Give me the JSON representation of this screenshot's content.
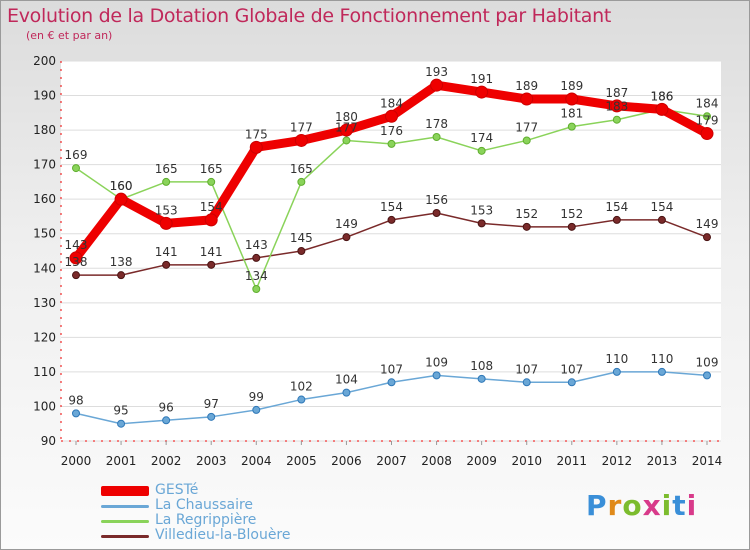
{
  "title": "Evolution de la Dotation Globale de Fonctionnement par Habitant",
  "subtitle": "(en € et par an)",
  "logo": {
    "text": "Proxiti",
    "colors": [
      "#3a8fd8",
      "#e08a1a",
      "#7cbc2e",
      "#d83a8a"
    ]
  },
  "chart_data": {
    "type": "line",
    "title": "Evolution de la Dotation Globale de Fonctionnement par Habitant",
    "subtitle": "(en € et par an)",
    "xlabel": "",
    "ylabel": "",
    "x": [
      "2000",
      "2001",
      "2002",
      "2003",
      "2004",
      "2005",
      "2006",
      "2007",
      "2008",
      "2009",
      "2010",
      "2011",
      "2012",
      "2013",
      "2014"
    ],
    "yticks": [
      90,
      100,
      110,
      120,
      130,
      140,
      150,
      160,
      170,
      180,
      190,
      200
    ],
    "ylim": [
      90,
      200
    ],
    "grid": "horizontal",
    "legend_position": "bottom-left",
    "series": [
      {
        "name": "GESTé",
        "color": "#ee0000",
        "values": [
          143,
          160,
          153,
          154,
          175,
          177,
          180,
          184,
          193,
          191,
          189,
          189,
          187,
          186,
          179
        ],
        "labels": [
          "143",
          "160",
          "153",
          "154",
          "175",
          "177",
          "180",
          "184",
          "193",
          "191",
          "189",
          "189",
          "187",
          "186",
          "179"
        ]
      },
      {
        "name": "La Chaussaire",
        "color": "#6aa7d6",
        "values": [
          98,
          95,
          96,
          97,
          99,
          102,
          104,
          107,
          109,
          108,
          107,
          107,
          110,
          110,
          109
        ],
        "labels": [
          "98",
          "95",
          "96",
          "97",
          "99",
          "102",
          "104",
          "107",
          "109",
          "108",
          "107",
          "107",
          "110",
          "110",
          "109"
        ]
      },
      {
        "name": "La Regrippière",
        "color": "#8ad35a",
        "values": [
          169,
          160,
          165,
          165,
          134,
          165,
          177,
          176,
          178,
          174,
          177,
          181,
          183,
          186,
          184
        ],
        "labels": [
          "169",
          "160",
          "165",
          "165",
          "134",
          "165",
          "177",
          "176",
          "178",
          "174",
          "177",
          "181",
          "183",
          "186",
          "184"
        ]
      },
      {
        "name": "Villedieu-la-Blouère",
        "color": "#7a2a2a",
        "values": [
          138,
          138,
          141,
          141,
          143,
          145,
          149,
          154,
          156,
          153,
          152,
          152,
          154,
          154,
          149
        ],
        "labels": [
          "138",
          "138",
          "141",
          "141",
          "143",
          "145",
          "149",
          "154",
          "156",
          "153",
          "152",
          "152",
          "154",
          "154",
          "149"
        ]
      }
    ]
  }
}
